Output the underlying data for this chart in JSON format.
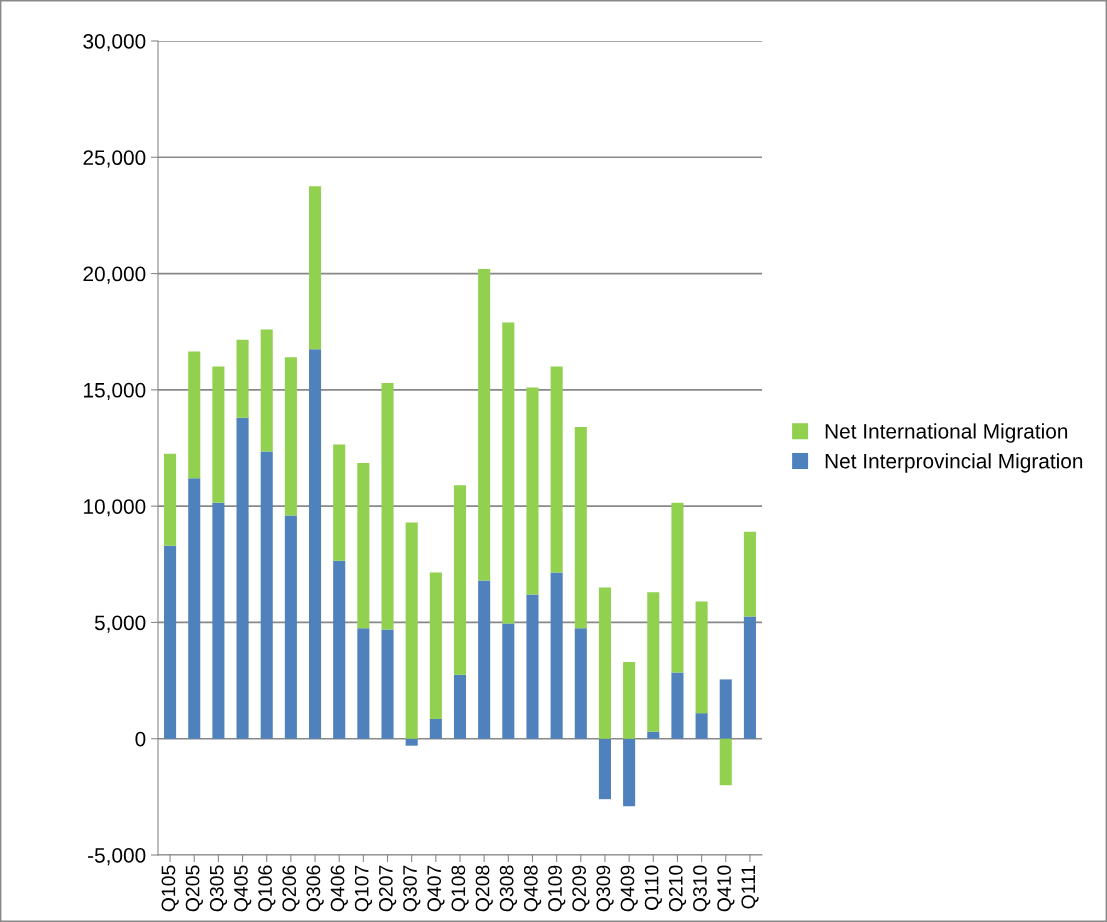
{
  "chart_data": {
    "type": "bar",
    "stacked": true,
    "categories": [
      "Q105",
      "Q205",
      "Q305",
      "Q405",
      "Q106",
      "Q206",
      "Q306",
      "Q406",
      "Q107",
      "Q207",
      "Q307",
      "Q407",
      "Q108",
      "Q208",
      "Q308",
      "Q408",
      "Q109",
      "Q209",
      "Q309",
      "Q409",
      "Q110",
      "Q210",
      "Q310",
      "Q410",
      "Q111"
    ],
    "series": [
      {
        "name": "Net Interprovincial Migration",
        "color": "#4f81bd",
        "values": [
          8300,
          11200,
          10150,
          13800,
          12350,
          9600,
          16750,
          7650,
          4750,
          4700,
          -300,
          850,
          2750,
          6800,
          4950,
          6200,
          7150,
          4750,
          -2600,
          -2900,
          300,
          2850,
          1100,
          2550,
          5250
        ]
      },
      {
        "name": "Net International Migration",
        "color": "#92d050",
        "values": [
          3950,
          5450,
          5850,
          3350,
          5250,
          6800,
          7000,
          5000,
          7100,
          10600,
          9300,
          6300,
          8150,
          13400,
          12950,
          8900,
          8850,
          8650,
          6500,
          3300,
          6000,
          7300,
          4800,
          -2000,
          3650
        ]
      }
    ],
    "ylim": [
      -5000,
      30000
    ],
    "yticks": [
      {
        "value": -5000,
        "label": "-5,000"
      },
      0,
      {
        "value": 5000,
        "label": "5,000"
      },
      {
        "value": 10000,
        "label": "10,000"
      },
      {
        "value": 15000,
        "label": "15,000"
      },
      {
        "value": 20000,
        "label": "20,000"
      },
      {
        "value": 25000,
        "label": "25,000"
      },
      {
        "value": 30000,
        "label": "30,000"
      }
    ],
    "grid": "y",
    "legend": "right"
  }
}
